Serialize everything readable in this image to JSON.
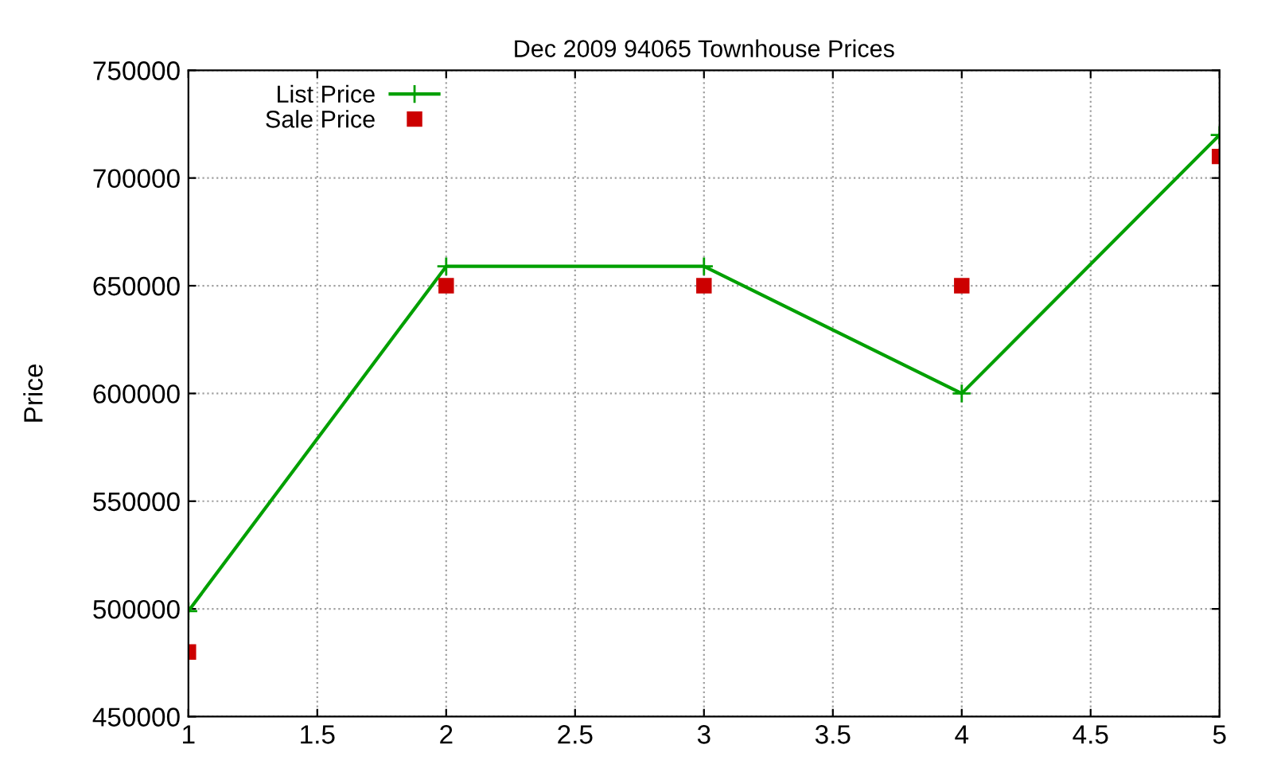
{
  "chart_data": {
    "type": "line",
    "title": "Dec 2009 94065 Townhouse Prices",
    "ylabel": "Price",
    "x": [
      1,
      2,
      3,
      4,
      5
    ],
    "series": [
      {
        "name": "List Price",
        "color": "#00a000",
        "marker": "cross",
        "values": [
          499000,
          659000,
          659000,
          600000,
          720000
        ]
      },
      {
        "name": "Sale Price",
        "type": "scatter",
        "color": "#cc0000",
        "marker": "square",
        "values": [
          480000,
          650000,
          650000,
          650000,
          710000
        ]
      }
    ],
    "xlim": [
      1,
      5
    ],
    "xticks": [
      1,
      1.5,
      2,
      2.5,
      3,
      3.5,
      4,
      4.5,
      5
    ],
    "ylim": [
      450000,
      750000
    ],
    "yticks": [
      450000,
      500000,
      550000,
      600000,
      650000,
      700000,
      750000
    ],
    "grid": true,
    "legend": "top left"
  }
}
